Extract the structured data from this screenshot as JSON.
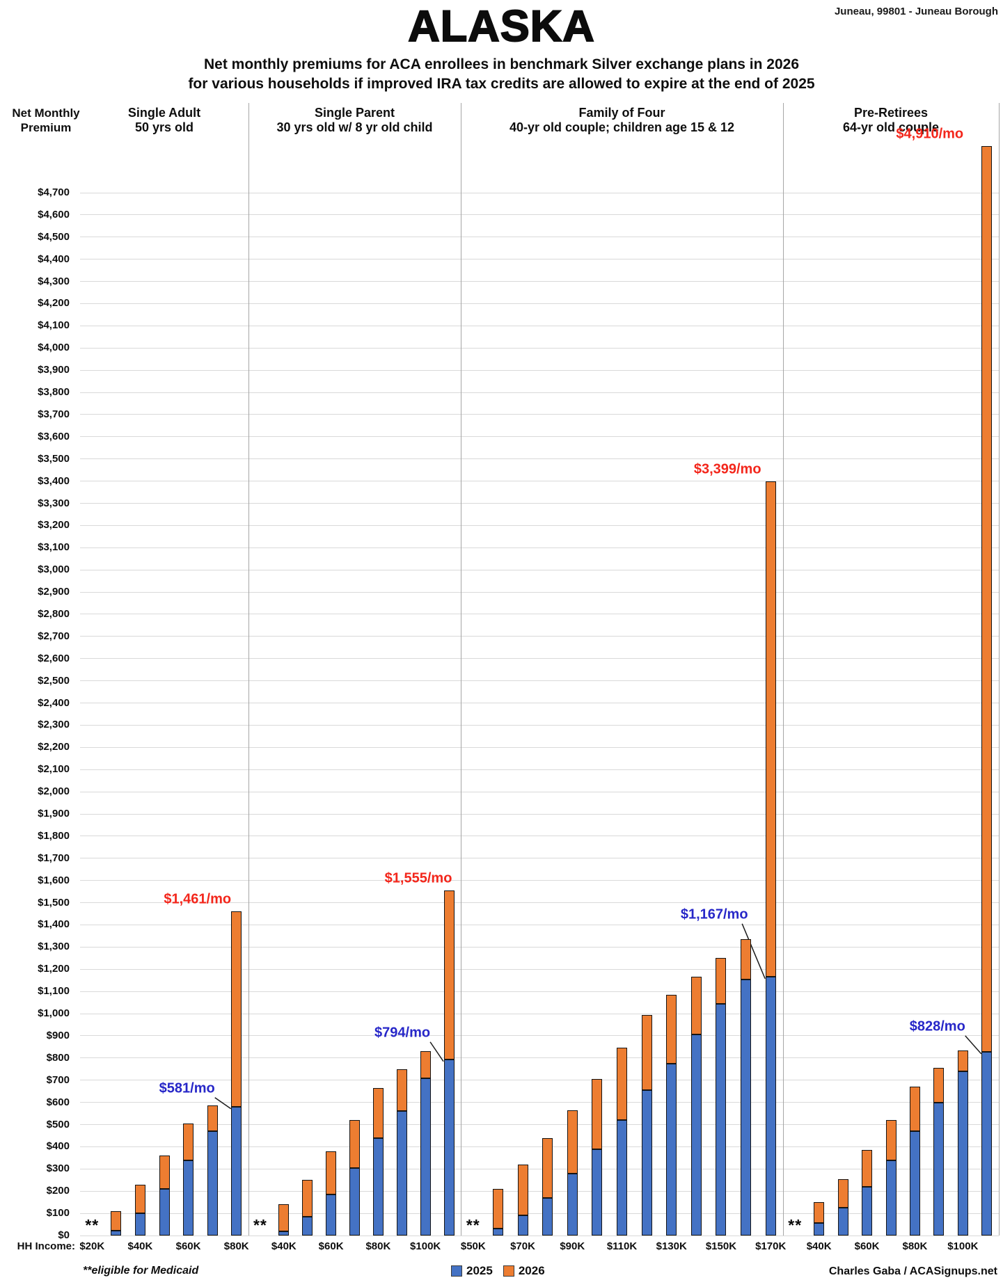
{
  "header": {
    "title": "ALASKA",
    "subtitle_line1": "Net monthly premiums for ACA enrollees in benchmark Silver exchange plans in 2026",
    "subtitle_line2": "for various households if improved IRA tax credits are allowed to expire at the end of 2025",
    "location": "Juneau, 99801 - Juneau Borough"
  },
  "axis": {
    "y_title_line1": "Net Monthly",
    "y_title_line2": "Premium",
    "x_prefix": "HH Income:",
    "y_min": 0,
    "y_max": 4700,
    "y_step": 100
  },
  "legend": {
    "items": [
      {
        "label": "2025",
        "color": "#4472C4"
      },
      {
        "label": "2026",
        "color": "#ED7D31"
      }
    ]
  },
  "footer": {
    "footnote": "**eligible for Medicaid",
    "credit": "Charles Gaba / ACASignups.net"
  },
  "chart_data": {
    "type": "bar",
    "stacked": true,
    "unit": "US$ net monthly premium",
    "medicaid_marker": "**",
    "y_axis": {
      "min": 0,
      "max": 4700,
      "step": 100,
      "format": "$#,##0"
    },
    "series_names": [
      "2025",
      "2026"
    ],
    "colors": {
      "bar_2025": "#4472C4",
      "bar_2026": "#ED7D31",
      "callout_2025_text": "#2727C8",
      "callout_2026_text": "#F3261B",
      "gridline": "#d9d9d9"
    },
    "panels": [
      {
        "title": "Single Adult",
        "subtitle": "50 yrs old",
        "callout_2025": "$581/mo",
        "callout_2026": "$1,461/mo",
        "slots": [
          {
            "income": "$20K",
            "tick": "$20K",
            "medicaid": true
          },
          {
            "income": "$30K",
            "tick": "",
            "v2025": 22,
            "v2026": 110
          },
          {
            "income": "$40K",
            "tick": "$40K",
            "v2025": 100,
            "v2026": 230
          },
          {
            "income": "$50K",
            "tick": "",
            "v2025": 210,
            "v2026": 360
          },
          {
            "income": "$60K",
            "tick": "$60K",
            "v2025": 340,
            "v2026": 505
          },
          {
            "income": "$70K",
            "tick": "",
            "v2025": 470,
            "v2026": 585
          },
          {
            "income": "$80K",
            "tick": "$80K",
            "v2025": 581,
            "v2026": 1461
          }
        ]
      },
      {
        "title": "Single Parent",
        "subtitle": "30 yrs old w/ 8 yr old child",
        "callout_2025": "$794/mo",
        "callout_2026": "$1,555/mo",
        "slots": [
          {
            "income": "$30K",
            "tick": "",
            "medicaid": true
          },
          {
            "income": "$40K",
            "tick": "$40K",
            "v2025": 18,
            "v2026": 140
          },
          {
            "income": "$50K",
            "tick": "",
            "v2025": 85,
            "v2026": 250
          },
          {
            "income": "$60K",
            "tick": "$60K",
            "v2025": 185,
            "v2026": 380
          },
          {
            "income": "$70K",
            "tick": "",
            "v2025": 305,
            "v2026": 520
          },
          {
            "income": "$80K",
            "tick": "$80K",
            "v2025": 440,
            "v2026": 665
          },
          {
            "income": "$90K",
            "tick": "",
            "v2025": 560,
            "v2026": 750
          },
          {
            "income": "$100K",
            "tick": "$100K",
            "v2025": 710,
            "v2026": 830
          },
          {
            "income": "$110K",
            "tick": "",
            "v2025": 794,
            "v2026": 1555
          }
        ]
      },
      {
        "title": "Family of Four",
        "subtitle": "40-yr old couple; children age 15 & 12",
        "callout_2025": "$1,167/mo",
        "callout_2026": "$3,399/mo",
        "slots": [
          {
            "income": "$50K",
            "tick": "$50K",
            "medicaid": true
          },
          {
            "income": "$60K",
            "tick": "",
            "v2025": 30,
            "v2026": 210
          },
          {
            "income": "$70K",
            "tick": "$70K",
            "v2025": 90,
            "v2026": 320
          },
          {
            "income": "$80K",
            "tick": "",
            "v2025": 170,
            "v2026": 440
          },
          {
            "income": "$90K",
            "tick": "$90K",
            "v2025": 280,
            "v2026": 565
          },
          {
            "income": "$100K",
            "tick": "",
            "v2025": 390,
            "v2026": 705
          },
          {
            "income": "$110K",
            "tick": "$110K",
            "v2025": 520,
            "v2026": 845
          },
          {
            "income": "$120K",
            "tick": "",
            "v2025": 655,
            "v2026": 995
          },
          {
            "income": "$130K",
            "tick": "$130K",
            "v2025": 775,
            "v2026": 1085
          },
          {
            "income": "$140K",
            "tick": "",
            "v2025": 905,
            "v2026": 1165
          },
          {
            "income": "$150K",
            "tick": "$150K",
            "v2025": 1045,
            "v2026": 1250
          },
          {
            "income": "$160K",
            "tick": "",
            "v2025": 1155,
            "v2026": 1335
          },
          {
            "income": "$170K",
            "tick": "$170K",
            "v2025": 1167,
            "v2026": 3399
          }
        ]
      },
      {
        "title": "Pre-Retirees",
        "subtitle": "64-yr old couple",
        "callout_2025": "$828/mo",
        "callout_2026": "$4,910/mo",
        "slots": [
          {
            "income": "$30K",
            "tick": "",
            "medicaid": true
          },
          {
            "income": "$40K",
            "tick": "$40K",
            "v2025": 55,
            "v2026": 150
          },
          {
            "income": "$50K",
            "tick": "",
            "v2025": 125,
            "v2026": 255
          },
          {
            "income": "$60K",
            "tick": "$60K",
            "v2025": 220,
            "v2026": 385
          },
          {
            "income": "$70K",
            "tick": "",
            "v2025": 340,
            "v2026": 520
          },
          {
            "income": "$80K",
            "tick": "$80K",
            "v2025": 470,
            "v2026": 670
          },
          {
            "income": "$90K",
            "tick": "",
            "v2025": 600,
            "v2026": 755
          },
          {
            "income": "$100K",
            "tick": "$100K",
            "v2025": 740,
            "v2026": 835
          },
          {
            "income": "$110K",
            "tick": "",
            "v2025": 828,
            "v2026": 4910
          }
        ]
      }
    ]
  }
}
